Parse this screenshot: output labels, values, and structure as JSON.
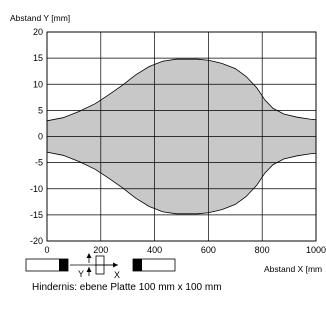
{
  "chart_data": {
    "type": "area",
    "title": "",
    "ylabel": "Abstand Y [mm]",
    "xlabel": "Abstand X [mm",
    "xlim": [
      0,
      1000
    ],
    "ylim": [
      -20,
      20
    ],
    "x_ticks": [
      0,
      200,
      400,
      600,
      800,
      1000
    ],
    "y_ticks": [
      20,
      15,
      10,
      5,
      0,
      -5,
      -10,
      -15,
      -20
    ],
    "grid": true,
    "fill_color": "#c8c8c8",
    "series": [
      {
        "x": [
          0,
          60,
          120,
          180,
          230,
          280,
          330,
          380,
          430,
          480,
          520,
          560,
          600,
          650,
          700,
          740,
          780,
          810,
          840,
          880,
          930,
          980,
          1000
        ],
        "upper": [
          3,
          3.6,
          4.8,
          6.3,
          8,
          9.8,
          11.8,
          13.4,
          14.4,
          14.8,
          14.8,
          14.8,
          14.6,
          14,
          13,
          11.5,
          9.3,
          7,
          5.4,
          4.3,
          3.7,
          3.3,
          3.2
        ],
        "lower": [
          -3,
          -3.6,
          -4.8,
          -6.3,
          -8,
          -9.8,
          -11.8,
          -13.4,
          -14.4,
          -14.8,
          -14.8,
          -14.8,
          -14.6,
          -14,
          -13,
          -11.5,
          -9.3,
          -7,
          -5.4,
          -4.3,
          -3.7,
          -3.3,
          -3.2
        ]
      }
    ]
  },
  "diagram": {
    "x_label": "X",
    "y_label": "Y"
  },
  "caption": "Hindernis: ebene Platte 100 mm x 100 mm"
}
